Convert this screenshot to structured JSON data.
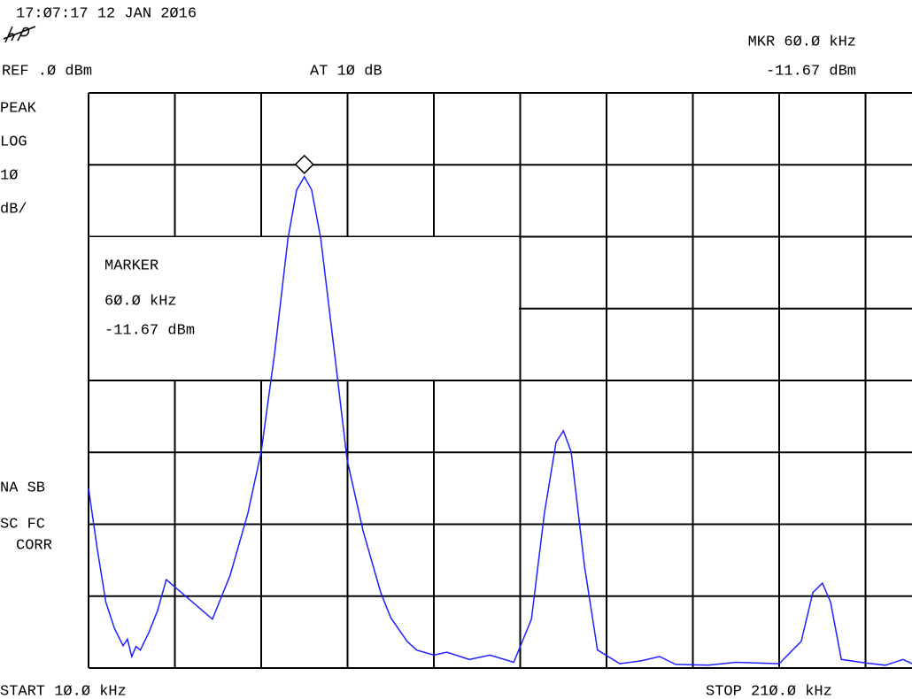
{
  "header": {
    "timestamp": "17:Ø7:17  12 JAN 2Ø16",
    "ref": "REF .Ø dBm",
    "atten": "AT 1Ø dB",
    "marker_freq": "MKR 6Ø.Ø kHz",
    "marker_level": "-11.67 dBm"
  },
  "side_labels": [
    "PEAK",
    "LOG",
    "1Ø",
    "dB/"
  ],
  "side_labels_lower": [
    "NA SB",
    "SC FC",
    "CORR"
  ],
  "marker_box": {
    "title": "MARKER",
    "freq": "6Ø.Ø kHz",
    "level": "-11.67 dBm"
  },
  "footer": {
    "start": "START 1Ø.Ø kHz",
    "stop": "STOP 21Ø.Ø kHz"
  },
  "chart_data": {
    "type": "line",
    "color": "#1f1fff",
    "x": [
      10,
      12,
      14,
      16,
      18,
      19,
      20,
      21,
      22,
      24,
      26,
      28,
      38.7,
      42.8,
      46.9,
      50,
      53.1,
      56.2,
      58.2,
      60,
      61.7,
      63.8,
      67,
      69.9,
      73.6,
      77.7,
      80,
      83.8,
      86,
      90,
      93,
      98.2,
      103,
      108.5,
      112.6,
      115.6,
      118.3,
      120,
      121.8,
      124.9,
      127.9,
      133.1,
      138,
      142.3,
      146,
      153.6,
      160,
      170,
      175.1,
      177.8,
      180,
      181.9,
      184.4,
      190,
      194.6,
      198.7,
      200.8
    ],
    "values": [
      -55,
      -63.4,
      -70.8,
      -74.5,
      -76.9,
      -76,
      -78.4,
      -77,
      -77.5,
      -75,
      -72,
      -67.7,
      -73.2,
      -67.1,
      -58.5,
      -49.9,
      -36.3,
      -20.3,
      -13.5,
      -11.67,
      -13.5,
      -20.3,
      -36.3,
      -51,
      -60.9,
      -69.5,
      -73,
      -76.3,
      -77.5,
      -78.2,
      -77.8,
      -78.8,
      -78.2,
      -79.2,
      -73.2,
      -58.5,
      -48.6,
      -47,
      -49.9,
      -65.8,
      -77.5,
      -79.4,
      -79,
      -78.4,
      -79.5,
      -79.6,
      -79.2,
      -79.4,
      -76.3,
      -69.5,
      -68.2,
      -70.8,
      -78.8,
      -79.3,
      -79.6,
      -78.8,
      -79.4
    ],
    "xlim": [
      10,
      210
    ],
    "ylim": [
      -80,
      0
    ],
    "xticks": [
      10,
      30,
      50,
      70,
      90,
      110,
      130,
      150,
      170,
      190,
      210
    ],
    "yticks": [
      0,
      -10,
      -20,
      -30,
      -40,
      -50,
      -60,
      -70,
      -80
    ],
    "grid": true,
    "marker": {
      "x": 60,
      "y": -11.67
    }
  }
}
